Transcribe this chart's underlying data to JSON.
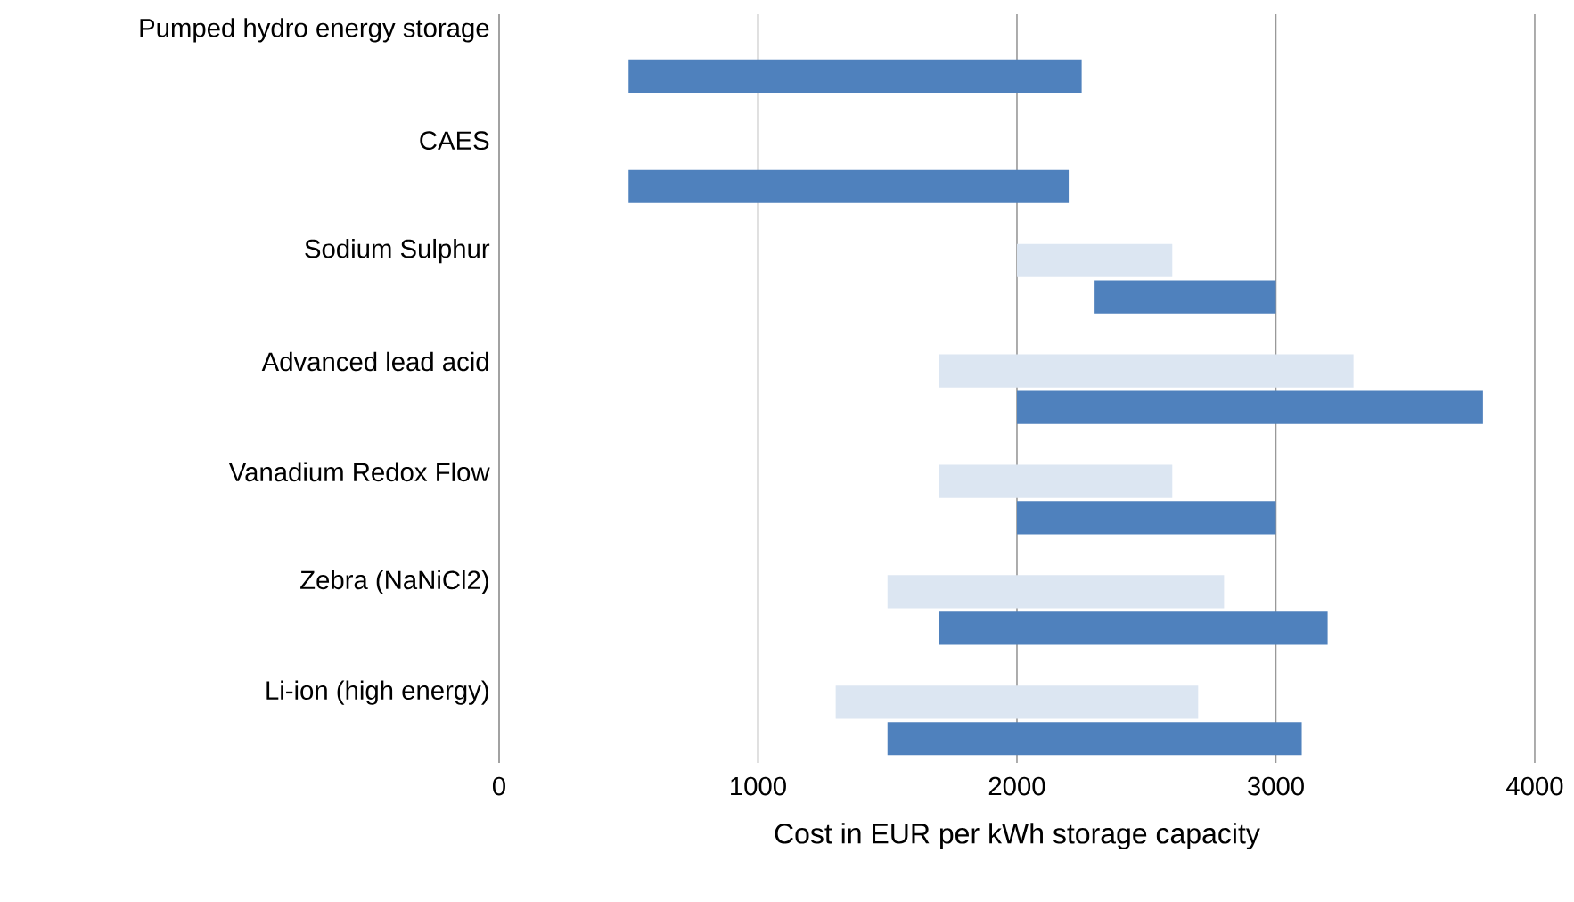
{
  "chart_data": {
    "type": "bar",
    "orientation": "horizontal",
    "xlabel": "Cost in EUR per kWh storage capacity",
    "categories": [
      "Pumped hydro energy storage",
      "CAES",
      "Sodium Sulphur",
      "Advanced lead acid",
      "Vanadium Redox Flow",
      "Zebra (NaNiCl2)",
      "Li-ion (high energy)"
    ],
    "series": [
      {
        "color": "#dce6f2",
        "base": [
          null,
          null,
          2000,
          1700,
          1700,
          1500,
          1300
        ],
        "values": [
          null,
          null,
          600,
          1600,
          900,
          1300,
          1400
        ]
      },
      {
        "color": "#4f81bd",
        "base": [
          500,
          500,
          2300,
          2000,
          2000,
          1700,
          1500
        ],
        "values": [
          1750,
          1700,
          700,
          1800,
          1000,
          1500,
          1600
        ]
      }
    ],
    "xlim": [
      0,
      4000
    ],
    "xticks": [
      0,
      1000,
      2000,
      3000,
      4000
    ],
    "grid": "x"
  }
}
